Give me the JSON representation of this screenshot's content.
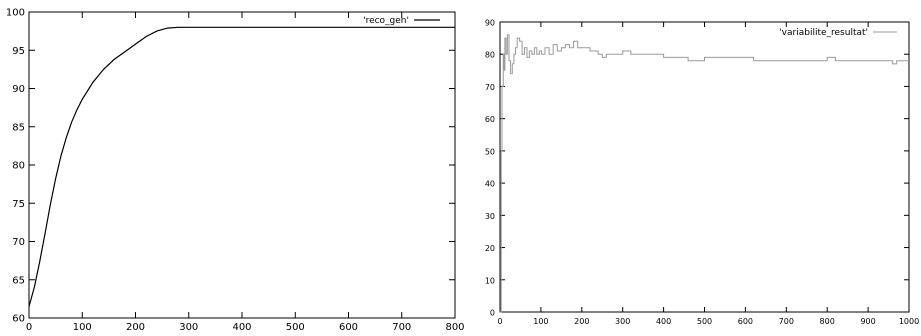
{
  "chart_data": [
    {
      "type": "line",
      "title": "",
      "xlabel": "",
      "ylabel": "",
      "xlim": [
        0,
        800
      ],
      "ylim": [
        60,
        100
      ],
      "xticks": [
        0,
        100,
        200,
        300,
        400,
        500,
        600,
        700,
        800
      ],
      "yticks": [
        60,
        65,
        70,
        75,
        80,
        85,
        90,
        95,
        100
      ],
      "grid": false,
      "legend_position": "top-right",
      "series": [
        {
          "name": "'reco_gen'",
          "color": "#000000",
          "x": [
            0,
            10,
            20,
            30,
            40,
            50,
            60,
            70,
            80,
            90,
            100,
            120,
            140,
            160,
            180,
            200,
            220,
            240,
            260,
            280,
            300,
            400,
            500,
            600,
            700,
            800
          ],
          "y": [
            61.5,
            64.0,
            67.3,
            71.0,
            74.8,
            78.2,
            81.2,
            83.6,
            85.6,
            87.2,
            88.6,
            90.8,
            92.5,
            93.8,
            94.8,
            95.8,
            96.8,
            97.5,
            97.9,
            98.0,
            98.0,
            98.0,
            98.0,
            98.0,
            98.0,
            98.0
          ]
        }
      ]
    },
    {
      "type": "line",
      "title": "",
      "xlabel": "",
      "ylabel": "",
      "xlim": [
        0,
        1000
      ],
      "ylim": [
        0,
        90
      ],
      "xticks": [
        0,
        100,
        200,
        300,
        400,
        500,
        600,
        700,
        800,
        900,
        1000
      ],
      "yticks": [
        0,
        10,
        20,
        30,
        40,
        50,
        60,
        70,
        80,
        90
      ],
      "grid": false,
      "legend_position": "top-right",
      "series": [
        {
          "name": "'variabilite_resultat'",
          "color": "#9a9a9a",
          "step": true,
          "x": [
            0,
            3,
            5,
            8,
            10,
            12,
            15,
            18,
            22,
            26,
            30,
            34,
            38,
            42,
            48,
            54,
            60,
            66,
            72,
            78,
            84,
            90,
            96,
            102,
            110,
            120,
            130,
            140,
            150,
            160,
            170,
            180,
            190,
            200,
            210,
            220,
            230,
            240,
            250,
            260,
            270,
            280,
            290,
            300,
            320,
            340,
            360,
            380,
            400,
            420,
            440,
            460,
            480,
            500,
            520,
            540,
            560,
            580,
            600,
            620,
            640,
            660,
            680,
            700,
            720,
            740,
            760,
            780,
            800,
            820,
            840,
            860,
            880,
            900,
            920,
            940,
            950,
            960,
            970,
            980,
            1000
          ],
          "y": [
            0,
            50,
            70,
            80,
            75,
            85,
            80,
            86,
            78,
            74,
            77,
            80,
            82,
            85,
            84,
            80,
            82,
            79,
            81,
            80,
            82,
            80,
            81,
            80,
            82,
            80,
            83,
            81,
            82,
            83,
            82,
            84,
            82,
            82,
            82,
            81,
            81,
            80,
            79,
            80,
            80,
            80,
            80,
            81,
            80,
            80,
            80,
            80,
            79,
            79,
            79,
            78,
            78,
            79,
            79,
            79,
            79,
            79,
            79,
            78,
            78,
            78,
            78,
            78,
            78,
            78,
            78,
            78,
            79,
            78,
            78,
            78,
            78,
            78,
            78,
            78,
            78,
            77,
            78,
            78,
            78
          ]
        }
      ]
    }
  ]
}
